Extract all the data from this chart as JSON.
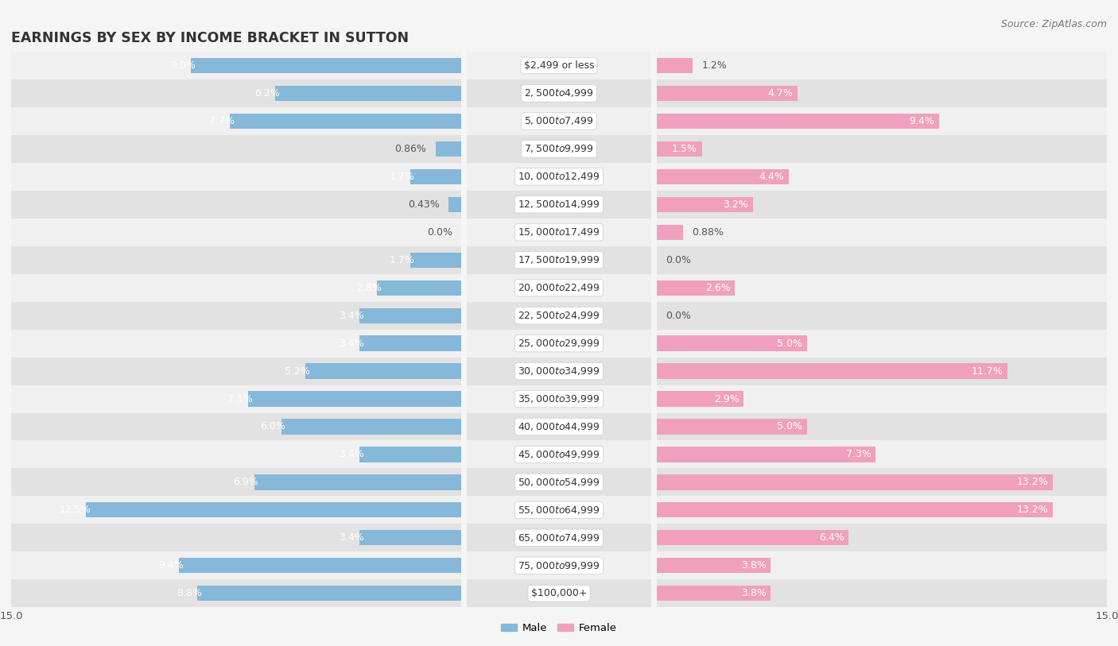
{
  "title": "EARNINGS BY SEX BY INCOME BRACKET IN SUTTON",
  "source": "Source: ZipAtlas.com",
  "categories": [
    "$2,499 or less",
    "$2,500 to $4,999",
    "$5,000 to $7,499",
    "$7,500 to $9,999",
    "$10,000 to $12,499",
    "$12,500 to $14,999",
    "$15,000 to $17,499",
    "$17,500 to $19,999",
    "$20,000 to $22,499",
    "$22,500 to $24,999",
    "$25,000 to $29,999",
    "$30,000 to $34,999",
    "$35,000 to $39,999",
    "$40,000 to $44,999",
    "$45,000 to $49,999",
    "$50,000 to $54,999",
    "$55,000 to $64,999",
    "$65,000 to $74,999",
    "$75,000 to $99,999",
    "$100,000+"
  ],
  "male_values": [
    9.0,
    6.2,
    7.7,
    0.86,
    1.7,
    0.43,
    0.0,
    1.7,
    2.8,
    3.4,
    3.4,
    5.2,
    7.1,
    6.0,
    3.4,
    6.9,
    12.5,
    3.4,
    9.4,
    8.8
  ],
  "female_values": [
    1.2,
    4.7,
    9.4,
    1.5,
    4.4,
    3.2,
    0.88,
    0.0,
    2.6,
    0.0,
    5.0,
    11.7,
    2.9,
    5.0,
    7.3,
    13.2,
    13.2,
    6.4,
    3.8,
    3.8
  ],
  "male_color": "#85b8d9",
  "female_color": "#f0a0bc",
  "row_color_odd": "#f0f0f0",
  "row_color_even": "#e2e2e2",
  "bg_color": "#f5f5f5",
  "xlim": 15.0,
  "title_fontsize": 12.5,
  "label_fontsize": 9.0,
  "cat_fontsize": 9.0,
  "tick_fontsize": 9.5,
  "source_fontsize": 9.0,
  "bar_height": 0.55
}
